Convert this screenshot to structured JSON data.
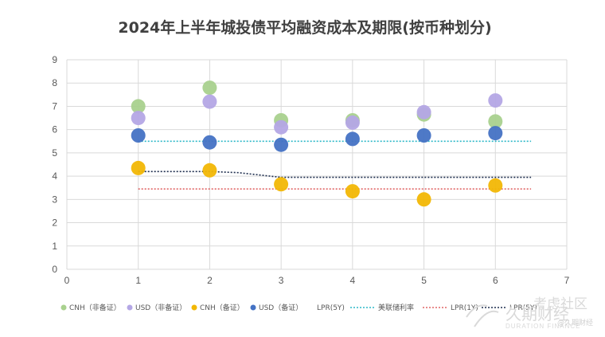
{
  "chart_data": {
    "type": "scatter",
    "title": "2024年上半年城投债平均融资成本及期限(按币种划分)",
    "xlabel": "",
    "ylabel": "",
    "xlim": [
      0,
      7
    ],
    "ylim": [
      0,
      9
    ],
    "x_ticks": [
      "0",
      "1",
      "2",
      "3",
      "4",
      "5",
      "6",
      "7"
    ],
    "y_ticks": [
      "0",
      "1",
      "2",
      "3",
      "4",
      "5",
      "6",
      "7",
      "8",
      "9"
    ],
    "grid": true,
    "legend_position": "bottom",
    "series": [
      {
        "name": "CNH（非备证）",
        "kind": "scatter",
        "color": "#a9d18e",
        "points": [
          {
            "x": 1,
            "y": 7.0
          },
          {
            "x": 2,
            "y": 7.8
          },
          {
            "x": 3,
            "y": 6.4
          },
          {
            "x": 4,
            "y": 6.4
          },
          {
            "x": 5,
            "y": 6.65
          },
          {
            "x": 6,
            "y": 6.35
          }
        ]
      },
      {
        "name": "USD（非备证）",
        "kind": "scatter",
        "color": "#b4a7e5",
        "points": [
          {
            "x": 1,
            "y": 6.5
          },
          {
            "x": 2,
            "y": 7.2
          },
          {
            "x": 3,
            "y": 6.1
          },
          {
            "x": 4,
            "y": 6.3
          },
          {
            "x": 5,
            "y": 6.75
          },
          {
            "x": 6,
            "y": 7.25
          }
        ]
      },
      {
        "name": "CNH（备证）",
        "kind": "scatter",
        "color": "#f2b705",
        "points": [
          {
            "x": 1,
            "y": 4.35
          },
          {
            "x": 2,
            "y": 4.25
          },
          {
            "x": 3,
            "y": 3.65
          },
          {
            "x": 4,
            "y": 3.35
          },
          {
            "x": 5,
            "y": 3.0
          },
          {
            "x": 6,
            "y": 3.6
          }
        ]
      },
      {
        "name": "USD（备证）",
        "kind": "scatter",
        "color": "#4472c4",
        "points": [
          {
            "x": 1,
            "y": 5.75
          },
          {
            "x": 2,
            "y": 5.45
          },
          {
            "x": 3,
            "y": 5.35
          },
          {
            "x": 4,
            "y": 5.6
          },
          {
            "x": 5,
            "y": 5.75
          },
          {
            "x": 6,
            "y": 5.85
          }
        ]
      },
      {
        "name": "LPR(5Y)",
        "kind": "line",
        "color": "#1f2f4f",
        "dash": "dotted",
        "points": [
          {
            "x": 1,
            "y": 4.2
          },
          {
            "x": 2,
            "y": 4.2
          },
          {
            "x": 2.4,
            "y": 4.15
          },
          {
            "x": 3,
            "y": 3.95
          },
          {
            "x": 6.5,
            "y": 3.95
          }
        ]
      },
      {
        "name": "美联储利率",
        "kind": "line",
        "color": "#2eb8c8",
        "dash": "dotted",
        "points": [
          {
            "x": 1,
            "y": 5.5
          },
          {
            "x": 6.5,
            "y": 5.5
          }
        ]
      },
      {
        "name": "LPR(1Y)",
        "kind": "line",
        "color": "#e06666",
        "dash": "dotted",
        "points": [
          {
            "x": 1,
            "y": 3.45
          },
          {
            "x": 6.5,
            "y": 3.45
          }
        ]
      }
    ],
    "legend": [
      {
        "label": "CNH（非备证）",
        "marker": "dot",
        "color": "#a9d18e"
      },
      {
        "label": "USD（非备证）",
        "marker": "dot",
        "color": "#b4a7e5"
      },
      {
        "label": "CNH（备证）",
        "marker": "dot",
        "color": "#f2b705"
      },
      {
        "label": "USD（备证）",
        "marker": "dot",
        "color": "#4472c4"
      },
      {
        "label": "LPR(5Y)",
        "marker": "none",
        "color": "#ffffff"
      },
      {
        "label": "美联储利率",
        "marker": "line",
        "color": "#2eb8c8"
      },
      {
        "label": "LPR(1Y)",
        "marker": "line",
        "color": "#e06666"
      },
      {
        "label": "LPR(5Y)",
        "marker": "line",
        "color": "#1f2f4f"
      }
    ]
  },
  "watermark": {
    "main": "久期财经",
    "sub": "DURATION FINANCE",
    "community": "考虑社区",
    "handle": "@久期财经"
  }
}
